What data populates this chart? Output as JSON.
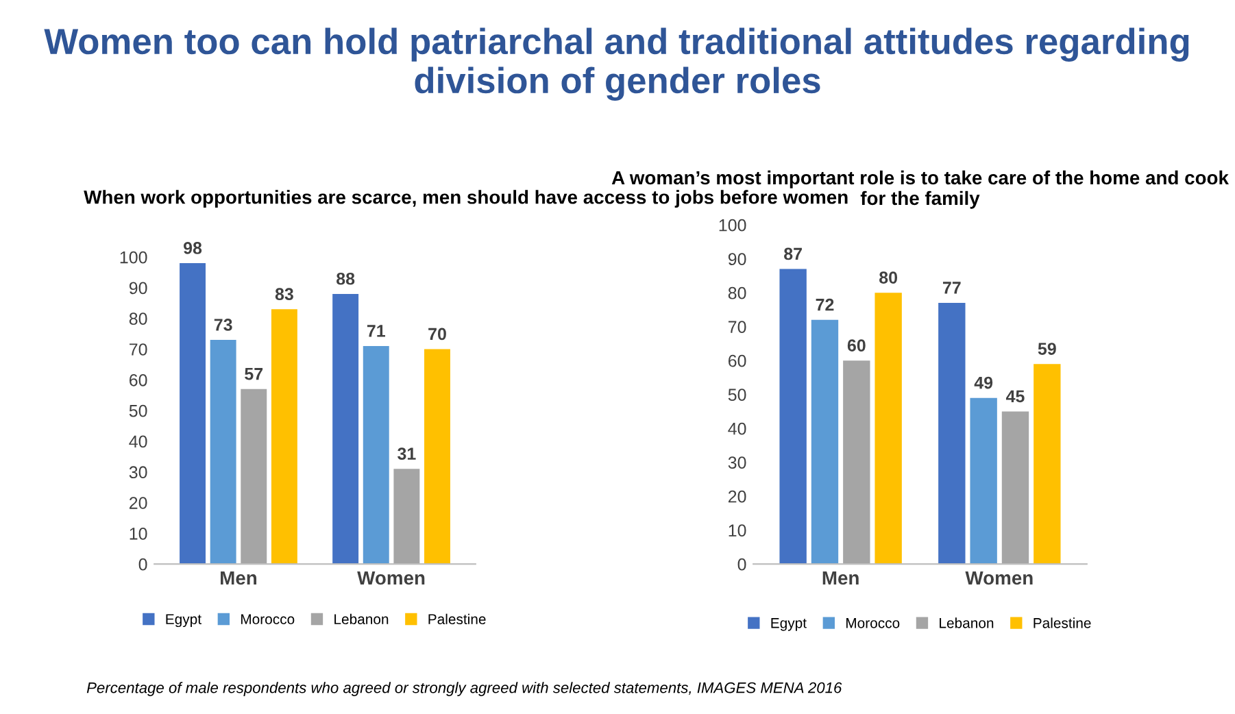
{
  "chart_data": [
    {
      "type": "bar",
      "title": "Women too can hold patriarchal and traditional attitudes regarding division of gender roles",
      "subtitle": "When work opportunities are scarce, men should have access to jobs before women",
      "categories": [
        "Men",
        "Women"
      ],
      "series": [
        {
          "name": "Egypt",
          "color": "#4472c4",
          "values": [
            98,
            88
          ]
        },
        {
          "name": "Morocco",
          "color": "#5b9bd5",
          "values": [
            73,
            71
          ]
        },
        {
          "name": "Lebanon",
          "color": "#a5a5a5",
          "values": [
            57,
            31
          ]
        },
        {
          "name": "Palestine",
          "color": "#ffc000",
          "values": [
            83,
            70
          ]
        }
      ],
      "ylim": [
        0,
        100
      ],
      "yticks": [
        0,
        10,
        20,
        30,
        40,
        50,
        60,
        70,
        80,
        90,
        100
      ],
      "data_labels": true,
      "grid": false,
      "legend": "bottom",
      "annotations": [
        "Percentage of male respondents who agreed or strongly agreed with selected statements, IMAGES MENA 2016"
      ]
    },
    {
      "type": "bar",
      "title": "A woman’s most important role is to take care of the home and cook for the family",
      "categories": [
        "Men",
        "Women"
      ],
      "series": [
        {
          "name": "Egypt",
          "color": "#4472c4",
          "values": [
            87,
            77
          ]
        },
        {
          "name": "Morocco",
          "color": "#5b9bd5",
          "values": [
            72,
            49
          ]
        },
        {
          "name": "Lebanon",
          "color": "#a5a5a5",
          "values": [
            60,
            45
          ]
        },
        {
          "name": "Palestine",
          "color": "#ffc000",
          "values": [
            80,
            59
          ]
        }
      ],
      "ylim": [
        0,
        100
      ],
      "yticks": [
        0,
        10,
        20,
        30,
        40,
        50,
        60,
        70,
        80,
        90,
        100
      ],
      "data_labels": true,
      "grid": false,
      "legend": "bottom"
    }
  ]
}
